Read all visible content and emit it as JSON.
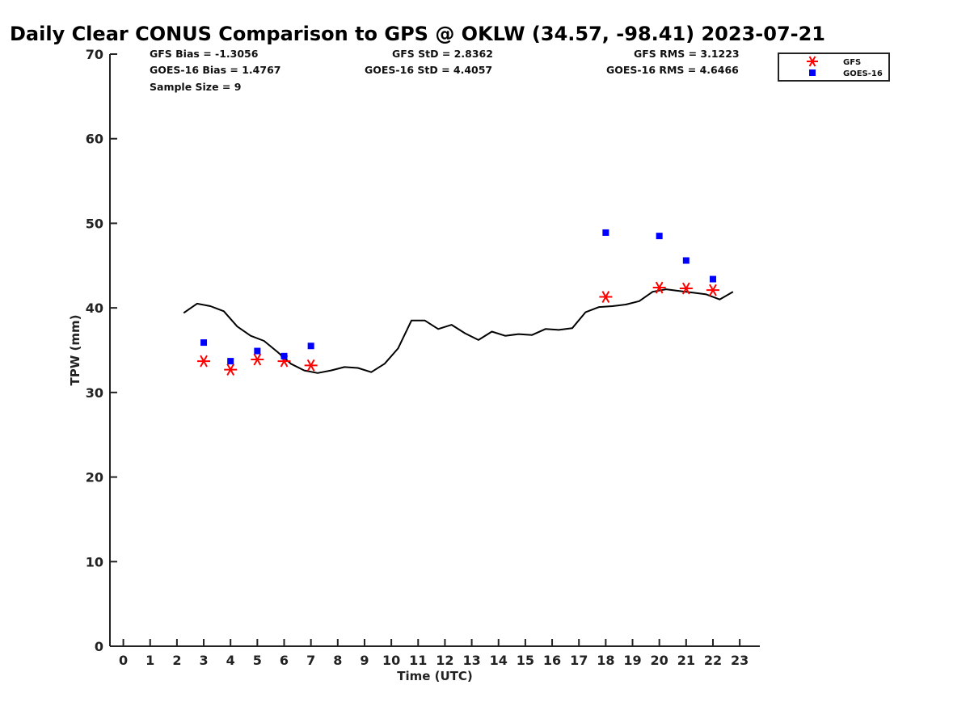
{
  "chart_data": {
    "type": "scatter",
    "title": "Daily Clear CONUS Comparison to GPS @ OKLW (34.57, -98.41) 2023-07-21",
    "xlabel": "Time (UTC)",
    "ylabel": "TPW (mm)",
    "xlim": [
      -0.5,
      23.75
    ],
    "ylim": [
      0,
      70
    ],
    "x_ticks": [
      0,
      1,
      2,
      3,
      4,
      5,
      6,
      7,
      8,
      9,
      10,
      11,
      12,
      13,
      14,
      15,
      16,
      17,
      18,
      19,
      20,
      21,
      22,
      23
    ],
    "y_ticks": [
      0,
      10,
      20,
      30,
      40,
      50,
      60,
      70
    ],
    "grid": false,
    "legend_position": "top-right",
    "stats": {
      "gfs_bias": "GFS Bias = -1.3056",
      "goes_bias": "GOES-16 Bias = 1.4767",
      "sample_size": "Sample Size = 9",
      "gfs_std": "GFS StD = 2.8362",
      "goes_std": "GOES-16 StD = 4.4057",
      "gfs_rms": "GFS RMS = 3.1223",
      "goes_rms": "GOES-16 RMS = 4.6466"
    },
    "series": [
      {
        "type": "line",
        "color": "#000000",
        "x": [
          2.25,
          2.75,
          3.25,
          3.75,
          4.25,
          4.75,
          5.25,
          5.75,
          6.25,
          6.75,
          7.25,
          7.75,
          8.25,
          8.75,
          9.25,
          9.75,
          10.25,
          10.75,
          11.25,
          11.75,
          12.25,
          12.75,
          13.25,
          13.75,
          14.25,
          14.75,
          15.25,
          15.75,
          16.25,
          16.75,
          17.25,
          17.75,
          18.25,
          18.75,
          19.25,
          19.75,
          20.25,
          20.75,
          21.25,
          21.75,
          22.25,
          22.75
        ],
        "y": [
          39.4,
          40.5,
          40.2,
          39.6,
          37.8,
          36.7,
          36.1,
          34.8,
          33.4,
          32.6,
          32.3,
          32.6,
          33.0,
          32.9,
          32.4,
          33.4,
          35.2,
          38.5,
          38.5,
          37.5,
          38.0,
          37.0,
          36.2,
          37.2,
          36.7,
          36.9,
          36.8,
          37.5,
          37.4,
          37.6,
          39.5,
          40.1,
          40.2,
          40.4,
          40.8,
          41.9,
          42.2,
          42.0,
          41.8,
          41.6,
          41.0,
          41.9
        ]
      },
      {
        "name": "GFS",
        "type": "scatter",
        "marker": "asterisk",
        "color": "#ff0000",
        "x": [
          3,
          4,
          5,
          6,
          7,
          18,
          20,
          21,
          22
        ],
        "y": [
          33.7,
          32.7,
          33.9,
          33.7,
          33.2,
          41.3,
          42.4,
          42.3,
          42.1
        ]
      },
      {
        "name": "GOES-16",
        "type": "scatter",
        "marker": "square",
        "color": "#0000ff",
        "x": [
          3,
          4,
          5,
          6,
          7,
          18,
          20,
          21,
          22
        ],
        "y": [
          35.9,
          33.7,
          34.9,
          34.3,
          35.5,
          48.9,
          48.5,
          45.6,
          43.4
        ]
      }
    ]
  }
}
